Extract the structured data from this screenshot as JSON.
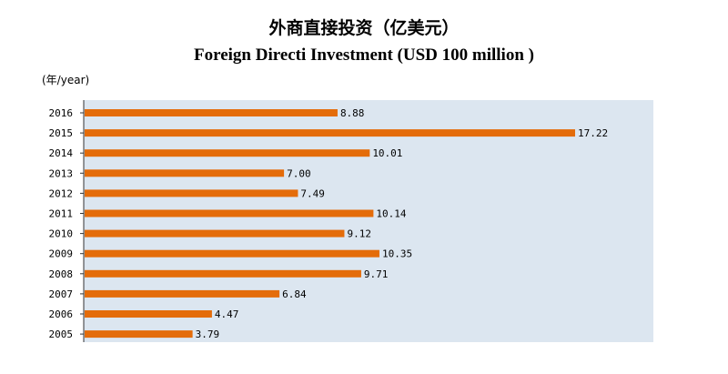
{
  "title_cn": "外商直接投资（亿美元）",
  "title_en": "Foreign Directi Investment (USD 100 million )",
  "unit_label": "(年/year)",
  "colors": {
    "bar": "#e46c0a",
    "plot_bg": "#dce6f0",
    "axis": "#333333"
  },
  "chart_data": {
    "type": "bar",
    "orientation": "horizontal",
    "title": "外商直接投资（亿美元）",
    "subtitle": "Foreign Directi Investment (USD 100 million )",
    "ylabel": "(年/year)",
    "xlabel": "",
    "xlim": [
      0,
      20
    ],
    "grid": false,
    "categories": [
      "2016",
      "2015",
      "2014",
      "2013",
      "2012",
      "2011",
      "2010",
      "2009",
      "2008",
      "2007",
      "2006",
      "2005"
    ],
    "values": [
      8.88,
      17.22,
      10.01,
      7.0,
      7.49,
      10.14,
      9.12,
      10.35,
      9.71,
      6.84,
      4.47,
      3.79
    ],
    "value_labels": [
      "8.88",
      "17.22",
      "10.01",
      "7.00",
      "7.49",
      "10.14",
      "9.12",
      "10.35",
      "9.71",
      "6.84",
      "4.47",
      "3.79"
    ]
  }
}
